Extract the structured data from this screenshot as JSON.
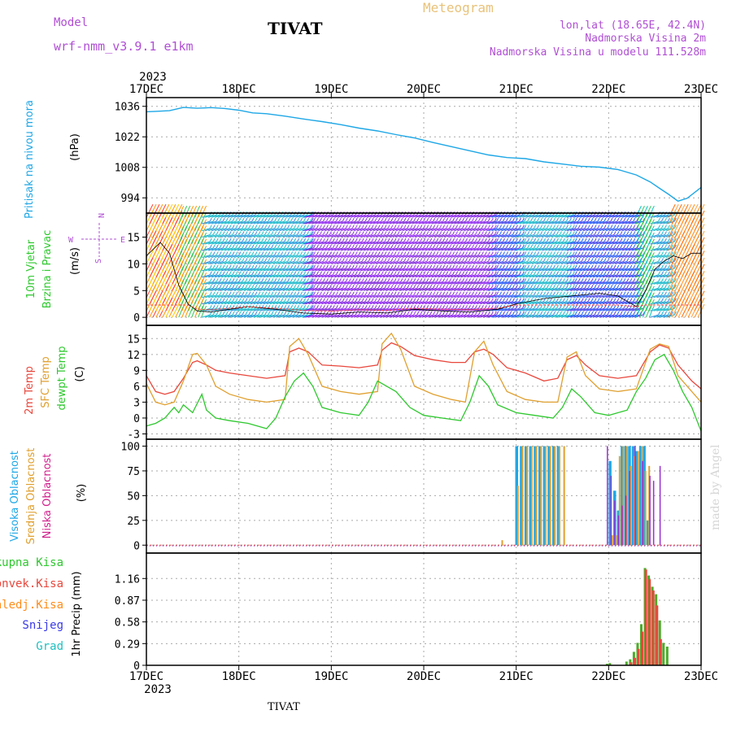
{
  "header": {
    "model_label": "Model",
    "model_name": "wrf-nmm_v3.9.1  e1km",
    "station": "TIVAT",
    "product": "Meteogram",
    "lonlat": "lon,lat (18.65E, 42.4N)",
    "altitude": "Nadmorska Visina 2m",
    "model_altitude": "Nadmorska Visina u modelu 111.528m",
    "credit": "made by Angel",
    "footer_station": "TIVAT"
  },
  "colors": {
    "pressure": "#1ea7e6",
    "temp2m": "#e8473c",
    "sfc_temp": "#e0a030",
    "dewpoint": "#2ec82e",
    "cloud_high": "#1ea7e6",
    "cloud_mid": "#e0a030",
    "cloud_low": "#9a2fd0",
    "precip_total": "#4cab2a",
    "precip_conv": "#e8473c",
    "header_purple": "#b04fd4",
    "header_gold": "#e8c27a"
  },
  "chart_data": [
    {
      "type": "line",
      "panel": "pressure",
      "ylabel": "Pritisak na nivou mora",
      "unit": "(hPa)",
      "yticks": [
        994,
        1008,
        1022,
        1036
      ],
      "ylim": [
        987,
        1040
      ],
      "x_days": [
        0,
        0.1,
        0.25,
        0.4,
        0.55,
        0.7,
        0.85,
        1.0,
        1.15,
        1.3,
        1.5,
        1.7,
        1.9,
        2.1,
        2.3,
        2.5,
        2.7,
        2.9,
        3.1,
        3.3,
        3.5,
        3.7,
        3.9,
        4.1,
        4.3,
        4.5,
        4.7,
        4.9,
        5.1,
        5.3,
        5.45,
        5.55,
        5.65,
        5.75,
        5.85,
        6.0
      ],
      "values": [
        1033.5,
        1033.7,
        1034.0,
        1035.5,
        1035.1,
        1035.4,
        1035.0,
        1034.2,
        1033.0,
        1032.6,
        1031.5,
        1030.2,
        1029.0,
        1027.6,
        1026.0,
        1024.7,
        1023.0,
        1021.5,
        1019.4,
        1017.5,
        1015.6,
        1013.7,
        1012.5,
        1012.0,
        1010.5,
        1009.5,
        1008.5,
        1008.1,
        1007.0,
        1004.5,
        1001.3,
        998.4,
        995.6,
        992.5,
        993.8,
        998.8
      ]
    },
    {
      "type": "wind-barbs",
      "panel": "wind",
      "ylabel_lines": [
        "10m Vjetar",
        "Brzina i Pravac"
      ],
      "unit": "(m/s)",
      "compass_labels": [
        "N",
        "W",
        "E",
        "S"
      ],
      "yticks": [
        0,
        5,
        10,
        15
      ],
      "ylim": [
        -1.5,
        19.5
      ],
      "speed_x_days": [
        0,
        0.15,
        0.25,
        0.35,
        0.45,
        0.55,
        0.7,
        0.9,
        1.1,
        1.4,
        1.7,
        2.0,
        2.3,
        2.6,
        2.9,
        3.2,
        3.5,
        3.8,
        4.0,
        4.3,
        4.6,
        4.9,
        5.1,
        5.3,
        5.4,
        5.5,
        5.6,
        5.7,
        5.8,
        5.9,
        6.0
      ],
      "speed_values": [
        11.5,
        14.0,
        12.0,
        6.0,
        2.5,
        1.2,
        1.0,
        1.5,
        2.0,
        1.5,
        0.8,
        0.6,
        1.0,
        0.8,
        1.5,
        1.2,
        1.0,
        1.5,
        2.5,
        3.5,
        4.0,
        4.5,
        4.0,
        2.0,
        5.0,
        9.0,
        10.5,
        11.5,
        11.0,
        12.0,
        12.0
      ]
    },
    {
      "type": "line",
      "panel": "temperature",
      "ylabel_lines": [
        "2m Temp",
        "SFC Temp",
        "dewpt Temp"
      ],
      "unit": "(C)",
      "yticks": [
        -3,
        0,
        3,
        6,
        9,
        12,
        15
      ],
      "ylim": [
        -4,
        17.5
      ],
      "series": [
        {
          "name": "2m Temp",
          "x": [
            0,
            0.1,
            0.2,
            0.3,
            0.4,
            0.5,
            0.55,
            0.65,
            0.75,
            0.9,
            1.1,
            1.3,
            1.5,
            1.55,
            1.65,
            1.75,
            1.9,
            2.1,
            2.3,
            2.5,
            2.55,
            2.65,
            2.75,
            2.9,
            3.1,
            3.3,
            3.45,
            3.55,
            3.65,
            3.75,
            3.9,
            4.1,
            4.3,
            4.45,
            4.55,
            4.65,
            4.75,
            4.9,
            5.1,
            5.3,
            5.45,
            5.55,
            5.65,
            5.75,
            5.9,
            6.0
          ],
          "values": [
            8.0,
            5.0,
            4.5,
            5.0,
            7.5,
            10.5,
            10.8,
            10.0,
            9.0,
            8.5,
            8.0,
            7.5,
            8.0,
            12.5,
            13.2,
            12.5,
            10.0,
            9.8,
            9.5,
            10.0,
            12.8,
            14.2,
            13.5,
            11.8,
            11.0,
            10.5,
            10.5,
            12.5,
            13.0,
            12.0,
            9.5,
            8.5,
            7.0,
            7.5,
            11.0,
            11.8,
            10.0,
            8.0,
            7.5,
            8.0,
            12.5,
            13.8,
            13.2,
            10.0,
            7.0,
            5.5
          ]
        },
        {
          "name": "SFC Temp",
          "x": [
            0,
            0.1,
            0.2,
            0.3,
            0.4,
            0.5,
            0.55,
            0.65,
            0.75,
            0.9,
            1.1,
            1.3,
            1.5,
            1.55,
            1.65,
            1.75,
            1.9,
            2.1,
            2.3,
            2.5,
            2.55,
            2.65,
            2.75,
            2.9,
            3.1,
            3.3,
            3.45,
            3.55,
            3.65,
            3.75,
            3.9,
            4.1,
            4.3,
            4.45,
            4.55,
            4.65,
            4.75,
            4.9,
            5.1,
            5.3,
            5.45,
            5.55,
            5.65,
            5.75,
            5.9,
            6.0
          ],
          "values": [
            6.5,
            3.0,
            2.5,
            3.0,
            7.0,
            12.0,
            12.2,
            10.0,
            6.0,
            4.5,
            3.5,
            3.0,
            3.5,
            13.5,
            15.0,
            12.0,
            6.0,
            5.0,
            4.5,
            5.0,
            14.0,
            16.0,
            13.0,
            6.0,
            4.5,
            3.5,
            3.0,
            12.5,
            14.5,
            10.0,
            5.0,
            3.5,
            3.0,
            3.0,
            11.5,
            12.5,
            8.0,
            5.5,
            5.0,
            5.5,
            13.0,
            14.0,
            13.5,
            8.0,
            5.0,
            3.0
          ]
        },
        {
          "name": "dewpt Temp",
          "x": [
            0,
            0.1,
            0.2,
            0.3,
            0.35,
            0.4,
            0.5,
            0.6,
            0.65,
            0.75,
            0.9,
            1.1,
            1.3,
            1.4,
            1.5,
            1.6,
            1.7,
            1.8,
            1.9,
            2.1,
            2.3,
            2.4,
            2.5,
            2.6,
            2.7,
            2.85,
            3.0,
            3.2,
            3.4,
            3.5,
            3.6,
            3.7,
            3.8,
            4.0,
            4.2,
            4.4,
            4.5,
            4.6,
            4.7,
            4.85,
            5.0,
            5.2,
            5.3,
            5.4,
            5.5,
            5.6,
            5.7,
            5.8,
            5.9,
            6.0
          ],
          "values": [
            -1.5,
            -1.0,
            0.0,
            2.0,
            1.0,
            2.5,
            1.0,
            4.5,
            1.5,
            0.0,
            -0.5,
            -1.0,
            -2.0,
            0.0,
            4.0,
            7.0,
            8.5,
            6.0,
            2.0,
            1.0,
            0.5,
            3.0,
            7.0,
            6.0,
            5.0,
            2.0,
            0.5,
            0.0,
            -0.5,
            3.0,
            8.0,
            6.0,
            2.5,
            1.0,
            0.5,
            0.0,
            2.0,
            5.5,
            4.0,
            1.0,
            0.5,
            1.5,
            5.0,
            7.5,
            11.0,
            12.0,
            9.0,
            5.0,
            2.0,
            -2.5
          ]
        }
      ]
    },
    {
      "type": "bar",
      "panel": "cloud",
      "ylabel_lines": [
        "Visoka Oblacnost",
        "Srednja Oblacnost",
        "Niska  Oblacnost"
      ],
      "unit": "(%)",
      "yticks": [
        0,
        25,
        50,
        75,
        100
      ],
      "ylim": [
        -8,
        107
      ],
      "series": [
        {
          "name": "Visoka Oblacnost",
          "x": [
            3.99,
            4.04,
            4.09,
            4.14,
            4.19,
            4.24,
            4.29,
            4.34,
            4.39,
            4.44,
            5.0,
            5.05,
            5.09,
            5.13,
            5.17,
            5.21,
            5.25,
            5.29,
            5.33,
            5.37,
            5.41
          ],
          "values": [
            100,
            100,
            100,
            100,
            100,
            100,
            100,
            100,
            100,
            100,
            85,
            55,
            35,
            100,
            100,
            100,
            100,
            95,
            100,
            100,
            25
          ]
        },
        {
          "name": "Srednja Oblacnost",
          "x": [
            3.84,
            4.01,
            4.06,
            4.11,
            4.16,
            4.21,
            4.26,
            4.31,
            4.36,
            4.41,
            4.46,
            4.51,
            5.03,
            5.07,
            5.11,
            5.15,
            5.19,
            5.23,
            5.27,
            5.31,
            5.35,
            5.39,
            5.43
          ],
          "values": [
            5,
            60,
            100,
            100,
            100,
            100,
            100,
            100,
            100,
            100,
            100,
            100,
            10,
            10,
            90,
            100,
            100,
            80,
            90,
            95,
            100,
            75,
            80
          ]
        },
        {
          "name": "Niska  Oblacnost",
          "x": [
            4.98,
            5.02,
            5.06,
            5.1,
            5.14,
            5.18,
            5.22,
            5.28,
            5.36,
            5.44,
            5.48,
            5.55
          ],
          "values": [
            100,
            70,
            45,
            30,
            40,
            50,
            75,
            100,
            85,
            70,
            65,
            80
          ]
        }
      ]
    },
    {
      "type": "bar",
      "panel": "precipitation",
      "ylabel": "1hr Precip",
      "unit": "(mm)",
      "legend": [
        "Ukupna  Kisa",
        "Konvek.Kisa",
        "Zaledj.Kisa",
        "Snijeg",
        "Grad"
      ],
      "yticks": [
        0,
        0.29,
        0.58,
        0.87,
        1.16
      ],
      "ylim": [
        0,
        1.5
      ],
      "series": [
        {
          "name": "Ukupna  Kisa",
          "x": [
            4.97,
            5.0,
            5.18,
            5.22,
            5.26,
            5.3,
            5.34,
            5.38,
            5.42,
            5.46,
            5.5,
            5.54,
            5.58,
            5.62
          ],
          "values": [
            0.02,
            0.03,
            0.05,
            0.08,
            0.18,
            0.3,
            0.55,
            1.3,
            1.2,
            1.05,
            0.95,
            0.6,
            0.3,
            0.25
          ]
        },
        {
          "name": "Konvek.Kisa",
          "x": [
            5.23,
            5.27,
            5.31,
            5.35,
            5.39,
            5.43,
            5.47,
            5.51,
            5.55
          ],
          "values": [
            0.04,
            0.1,
            0.22,
            0.45,
            1.28,
            1.15,
            1.0,
            0.8,
            0.35
          ]
        }
      ]
    }
  ],
  "xaxis": {
    "year": "2023",
    "labels": [
      "17DEC",
      "18DEC",
      "19DEC",
      "20DEC",
      "21DEC",
      "22DEC",
      "23DEC"
    ]
  }
}
